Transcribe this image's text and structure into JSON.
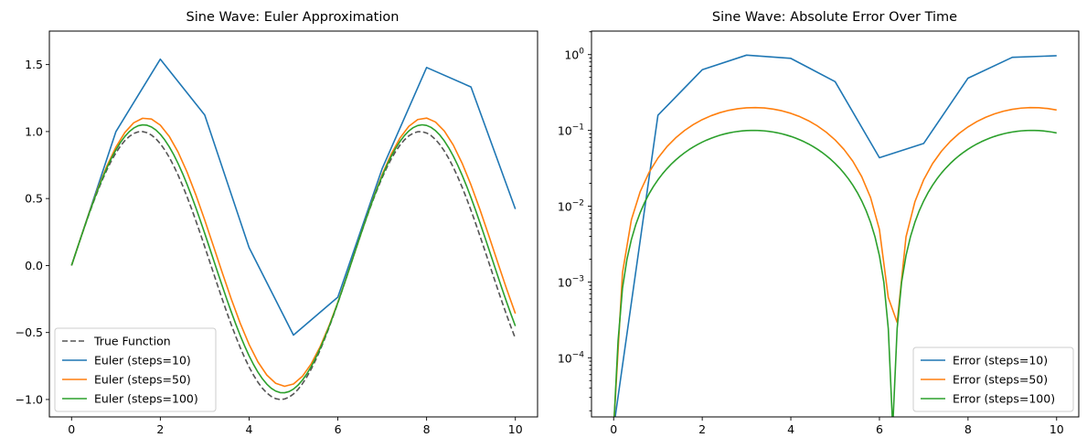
{
  "chart_data": [
    {
      "type": "line",
      "title": "Sine Wave: Euler Approximation",
      "xlabel": "",
      "ylabel": "",
      "xlim": [
        -0.5,
        10.5
      ],
      "ylim": [
        -1.13,
        1.75
      ],
      "x_ticks": [
        0,
        2,
        4,
        6,
        8,
        10
      ],
      "x_tick_labels": [
        "0",
        "2",
        "4",
        "6",
        "8",
        "10"
      ],
      "y_ticks": [
        -1.0,
        -0.5,
        0.0,
        0.5,
        1.0,
        1.5
      ],
      "y_tick_labels": [
        "−1.0",
        "−0.5",
        "0.0",
        "0.5",
        "1.0",
        "1.5"
      ],
      "legend_position": "lower-left",
      "series": [
        {
          "name": "True Function",
          "color": "#555555",
          "dash": true,
          "generator": "true_sin",
          "n": 100
        },
        {
          "name": "Euler (steps=10)",
          "color": "#1f77b4",
          "dash": false,
          "generator": "euler",
          "n": 10
        },
        {
          "name": "Euler (steps=50)",
          "color": "#ff7f0e",
          "dash": false,
          "generator": "euler",
          "n": 50
        },
        {
          "name": "Euler (steps=100)",
          "color": "#2ca02c",
          "dash": false,
          "generator": "euler",
          "n": 100
        }
      ]
    },
    {
      "type": "line",
      "title": "Sine Wave: Absolute Error Over Time",
      "xlabel": "",
      "ylabel": "",
      "yscale": "log",
      "xlim": [
        -0.5,
        10.5
      ],
      "ylim_log10": [
        -4.78,
        0.31
      ],
      "x_ticks": [
        0,
        2,
        4,
        6,
        8,
        10
      ],
      "x_tick_labels": [
        "0",
        "2",
        "4",
        "6",
        "8",
        "10"
      ],
      "y_ticks_exp": [
        -4,
        -3,
        -2,
        -1,
        0
      ],
      "y_tick_labels": [
        "10",
        "10",
        "10",
        "10",
        "10"
      ],
      "y_tick_exponents": [
        "−4",
        "−3",
        "−2",
        "−1",
        "0"
      ],
      "legend_position": "lower-right",
      "series": [
        {
          "name": "Error (steps=10)",
          "color": "#1f77b4",
          "generator": "euler_error",
          "n": 10
        },
        {
          "name": "Error (steps=50)",
          "color": "#ff7f0e",
          "generator": "euler_error",
          "n": 50
        },
        {
          "name": "Error (steps=100)",
          "color": "#2ca02c",
          "generator": "euler_error",
          "n": 100
        }
      ]
    }
  ]
}
